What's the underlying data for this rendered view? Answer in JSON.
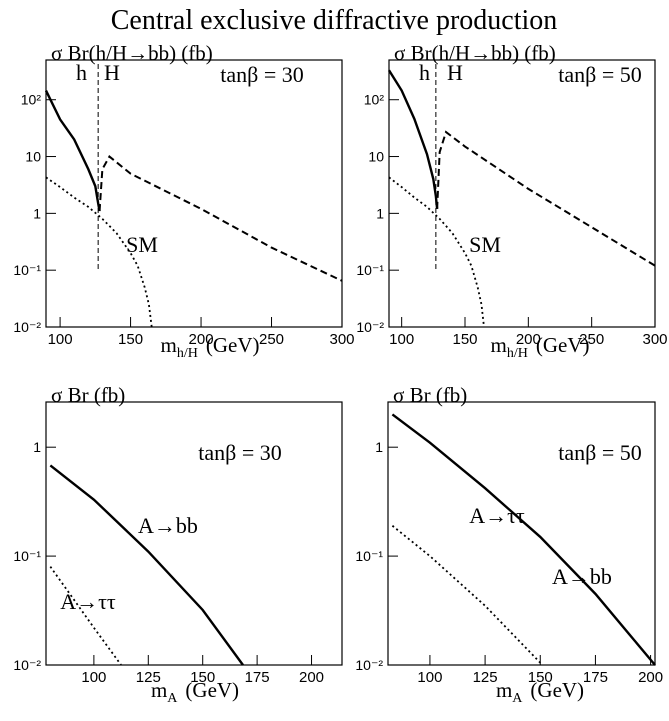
{
  "title": "Central exclusive diffractive production",
  "chart_data": [
    {
      "type": "line",
      "ylog": true,
      "ylabel": "σ Br(h/H→bb)  (fb)",
      "xlabel": [
        "m",
        "h/H",
        "(GeV)"
      ],
      "annotation": "tanβ = 30",
      "divider_x": 127,
      "xlim": [
        90,
        300
      ],
      "xticks": [
        100,
        150,
        200,
        250,
        300
      ],
      "ylim": [
        0.01,
        500
      ],
      "yticks": [
        {
          "value": 100,
          "label": "10²"
        },
        10,
        1,
        {
          "value": 0.1,
          "label": "10⁻¹"
        },
        {
          "value": 0.01,
          "label": "10⁻²"
        }
      ],
      "series": [
        {
          "name": "h",
          "color": "#000000",
          "style": "solid",
          "x": [
            90,
            100,
            110,
            120,
            125,
            127,
            128
          ],
          "values": [
            145,
            45,
            20,
            6,
            3,
            1.5,
            1.1
          ]
        },
        {
          "name": "H",
          "color": "#000000",
          "style": "dashed",
          "x": [
            128,
            130,
            135,
            150,
            200,
            250,
            300
          ],
          "values": [
            1.1,
            6,
            10,
            5,
            1.2,
            0.25,
            0.065
          ]
        },
        {
          "name": "SM",
          "color": "#000000",
          "style": "dotted",
          "x": [
            90,
            100,
            110,
            120,
            130,
            140,
            150,
            155,
            160,
            163,
            165
          ],
          "values": [
            4.3,
            2.9,
            1.9,
            1.3,
            0.8,
            0.45,
            0.2,
            0.12,
            0.05,
            0.025,
            0.01
          ]
        }
      ]
    },
    {
      "type": "line",
      "ylog": true,
      "ylabel": "σ Br(h/H→bb)  (fb)",
      "xlabel": [
        "m",
        "h/H",
        "(GeV)"
      ],
      "annotation": "tanβ = 50",
      "divider_x": 127,
      "xlim": [
        90,
        300
      ],
      "xticks": [
        100,
        150,
        200,
        250,
        300
      ],
      "ylim": [
        0.01,
        500
      ],
      "yticks": [
        {
          "value": 100,
          "label": "10²"
        },
        10,
        1,
        {
          "value": 0.1,
          "label": "10⁻¹"
        },
        {
          "value": 0.01,
          "label": "10⁻²"
        }
      ],
      "series": [
        {
          "name": "h",
          "color": "#000000",
          "style": "solid",
          "x": [
            90,
            100,
            110,
            120,
            125,
            127,
            128
          ],
          "values": [
            330,
            145,
            46,
            11,
            4,
            2,
            1.2
          ]
        },
        {
          "name": "H",
          "color": "#000000",
          "style": "dashed",
          "x": [
            128,
            130,
            135,
            150,
            200,
            250,
            300
          ],
          "values": [
            1.2,
            12,
            27,
            15,
            2.7,
            0.57,
            0.12
          ]
        },
        {
          "name": "SM",
          "color": "#000000",
          "style": "dotted",
          "x": [
            90,
            100,
            110,
            120,
            130,
            140,
            150,
            155,
            160,
            163,
            165
          ],
          "values": [
            4.3,
            2.9,
            1.9,
            1.3,
            0.8,
            0.45,
            0.2,
            0.12,
            0.05,
            0.025,
            0.01
          ]
        }
      ]
    },
    {
      "type": "line",
      "ylog": true,
      "ylabel": "σ Br  (fb)",
      "xlabel": [
        "m",
        "A",
        "(GeV)"
      ],
      "annotation": "tanβ = 30",
      "xlim": [
        78,
        214
      ],
      "xticks": [
        100,
        125,
        150,
        175,
        200
      ],
      "ylim": [
        0.01,
        2.6
      ],
      "yticks": [
        1,
        {
          "value": 0.1,
          "label": "10⁻¹"
        },
        {
          "value": 0.01,
          "label": "10⁻²"
        }
      ],
      "series": [
        {
          "name": "A→bb",
          "color": "#000000",
          "style": "solid",
          "x": [
            80,
            100,
            125,
            150,
            168.5
          ],
          "values": [
            0.68,
            0.33,
            0.11,
            0.032,
            0.01
          ]
        },
        {
          "name": "A→ττ",
          "color": "#000000",
          "style": "dotted",
          "x": [
            80,
            90,
            100,
            112.5
          ],
          "values": [
            0.08,
            0.042,
            0.022,
            0.01
          ]
        }
      ]
    },
    {
      "type": "line",
      "ylog": true,
      "ylabel": "σ Br  (fb)",
      "xlabel": [
        "m",
        "A",
        "(GeV)"
      ],
      "annotation": "tanβ = 50",
      "xlim": [
        81,
        202
      ],
      "xticks": [
        100,
        125,
        150,
        175,
        200
      ],
      "ylim": [
        0.01,
        2.6
      ],
      "yticks": [
        1,
        {
          "value": 0.1,
          "label": "10⁻¹"
        },
        {
          "value": 0.01,
          "label": "10⁻²"
        }
      ],
      "series": [
        {
          "name": "A→bb",
          "color": "#000000",
          "style": "solid",
          "x": [
            83,
            100,
            125,
            150,
            175,
            202
          ],
          "values": [
            2.0,
            1.1,
            0.42,
            0.15,
            0.045,
            0.01
          ]
        },
        {
          "name": "A→ττ",
          "color": "#000000",
          "style": "dotted",
          "x": [
            83,
            100,
            125,
            151
          ],
          "values": [
            0.19,
            0.1,
            0.035,
            0.01
          ]
        }
      ]
    }
  ]
}
